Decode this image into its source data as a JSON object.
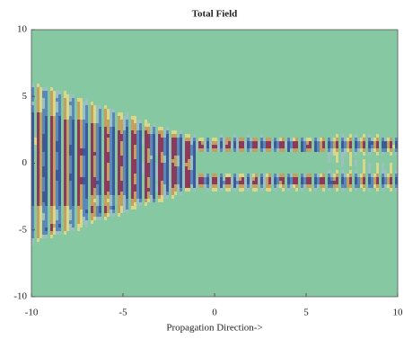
{
  "chart_data": {
    "type": "field-map",
    "title": "Total Field",
    "x_label": "Propagation Direction->",
    "xlim": [
      -10,
      10
    ],
    "xticks": [
      -10,
      -5,
      0,
      5,
      10
    ],
    "ylim": [
      -10,
      10
    ],
    "yticks": [
      -10,
      -5,
      0,
      5,
      10
    ]
  }
}
